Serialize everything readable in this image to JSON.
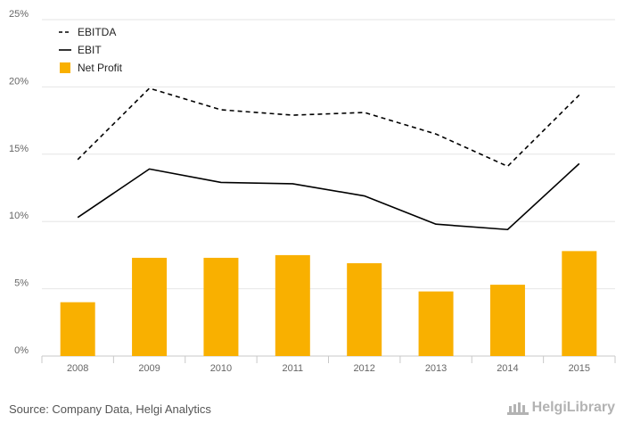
{
  "chart_data": {
    "type": "bar",
    "categories": [
      "2008",
      "2009",
      "2010",
      "2011",
      "2012",
      "2013",
      "2014",
      "2015"
    ],
    "ylim": [
      0,
      25
    ],
    "yticks": [
      "0%",
      "5%",
      "10%",
      "15%",
      "20%",
      "25%"
    ],
    "ytick_values": [
      0,
      5,
      10,
      15,
      20,
      25
    ],
    "grid": true,
    "legend": "top-left",
    "series": [
      {
        "name": "EBITDA",
        "kind": "line",
        "style": "dashed",
        "color": "#000000",
        "values": [
          14.6,
          19.9,
          18.3,
          17.9,
          18.1,
          16.5,
          14.1,
          19.4
        ]
      },
      {
        "name": "EBIT",
        "kind": "line",
        "style": "solid",
        "color": "#000000",
        "values": [
          10.3,
          13.9,
          12.9,
          12.8,
          11.9,
          9.8,
          9.4,
          14.3
        ]
      },
      {
        "name": "Net Profit",
        "kind": "bar",
        "color": "#f9b000",
        "values": [
          4.0,
          7.3,
          7.3,
          7.5,
          6.9,
          4.8,
          5.3,
          7.8
        ]
      }
    ]
  },
  "footer": {
    "source": "Source: Company Data, Helgi Analytics",
    "logo_text": "HelgiLibrary"
  }
}
